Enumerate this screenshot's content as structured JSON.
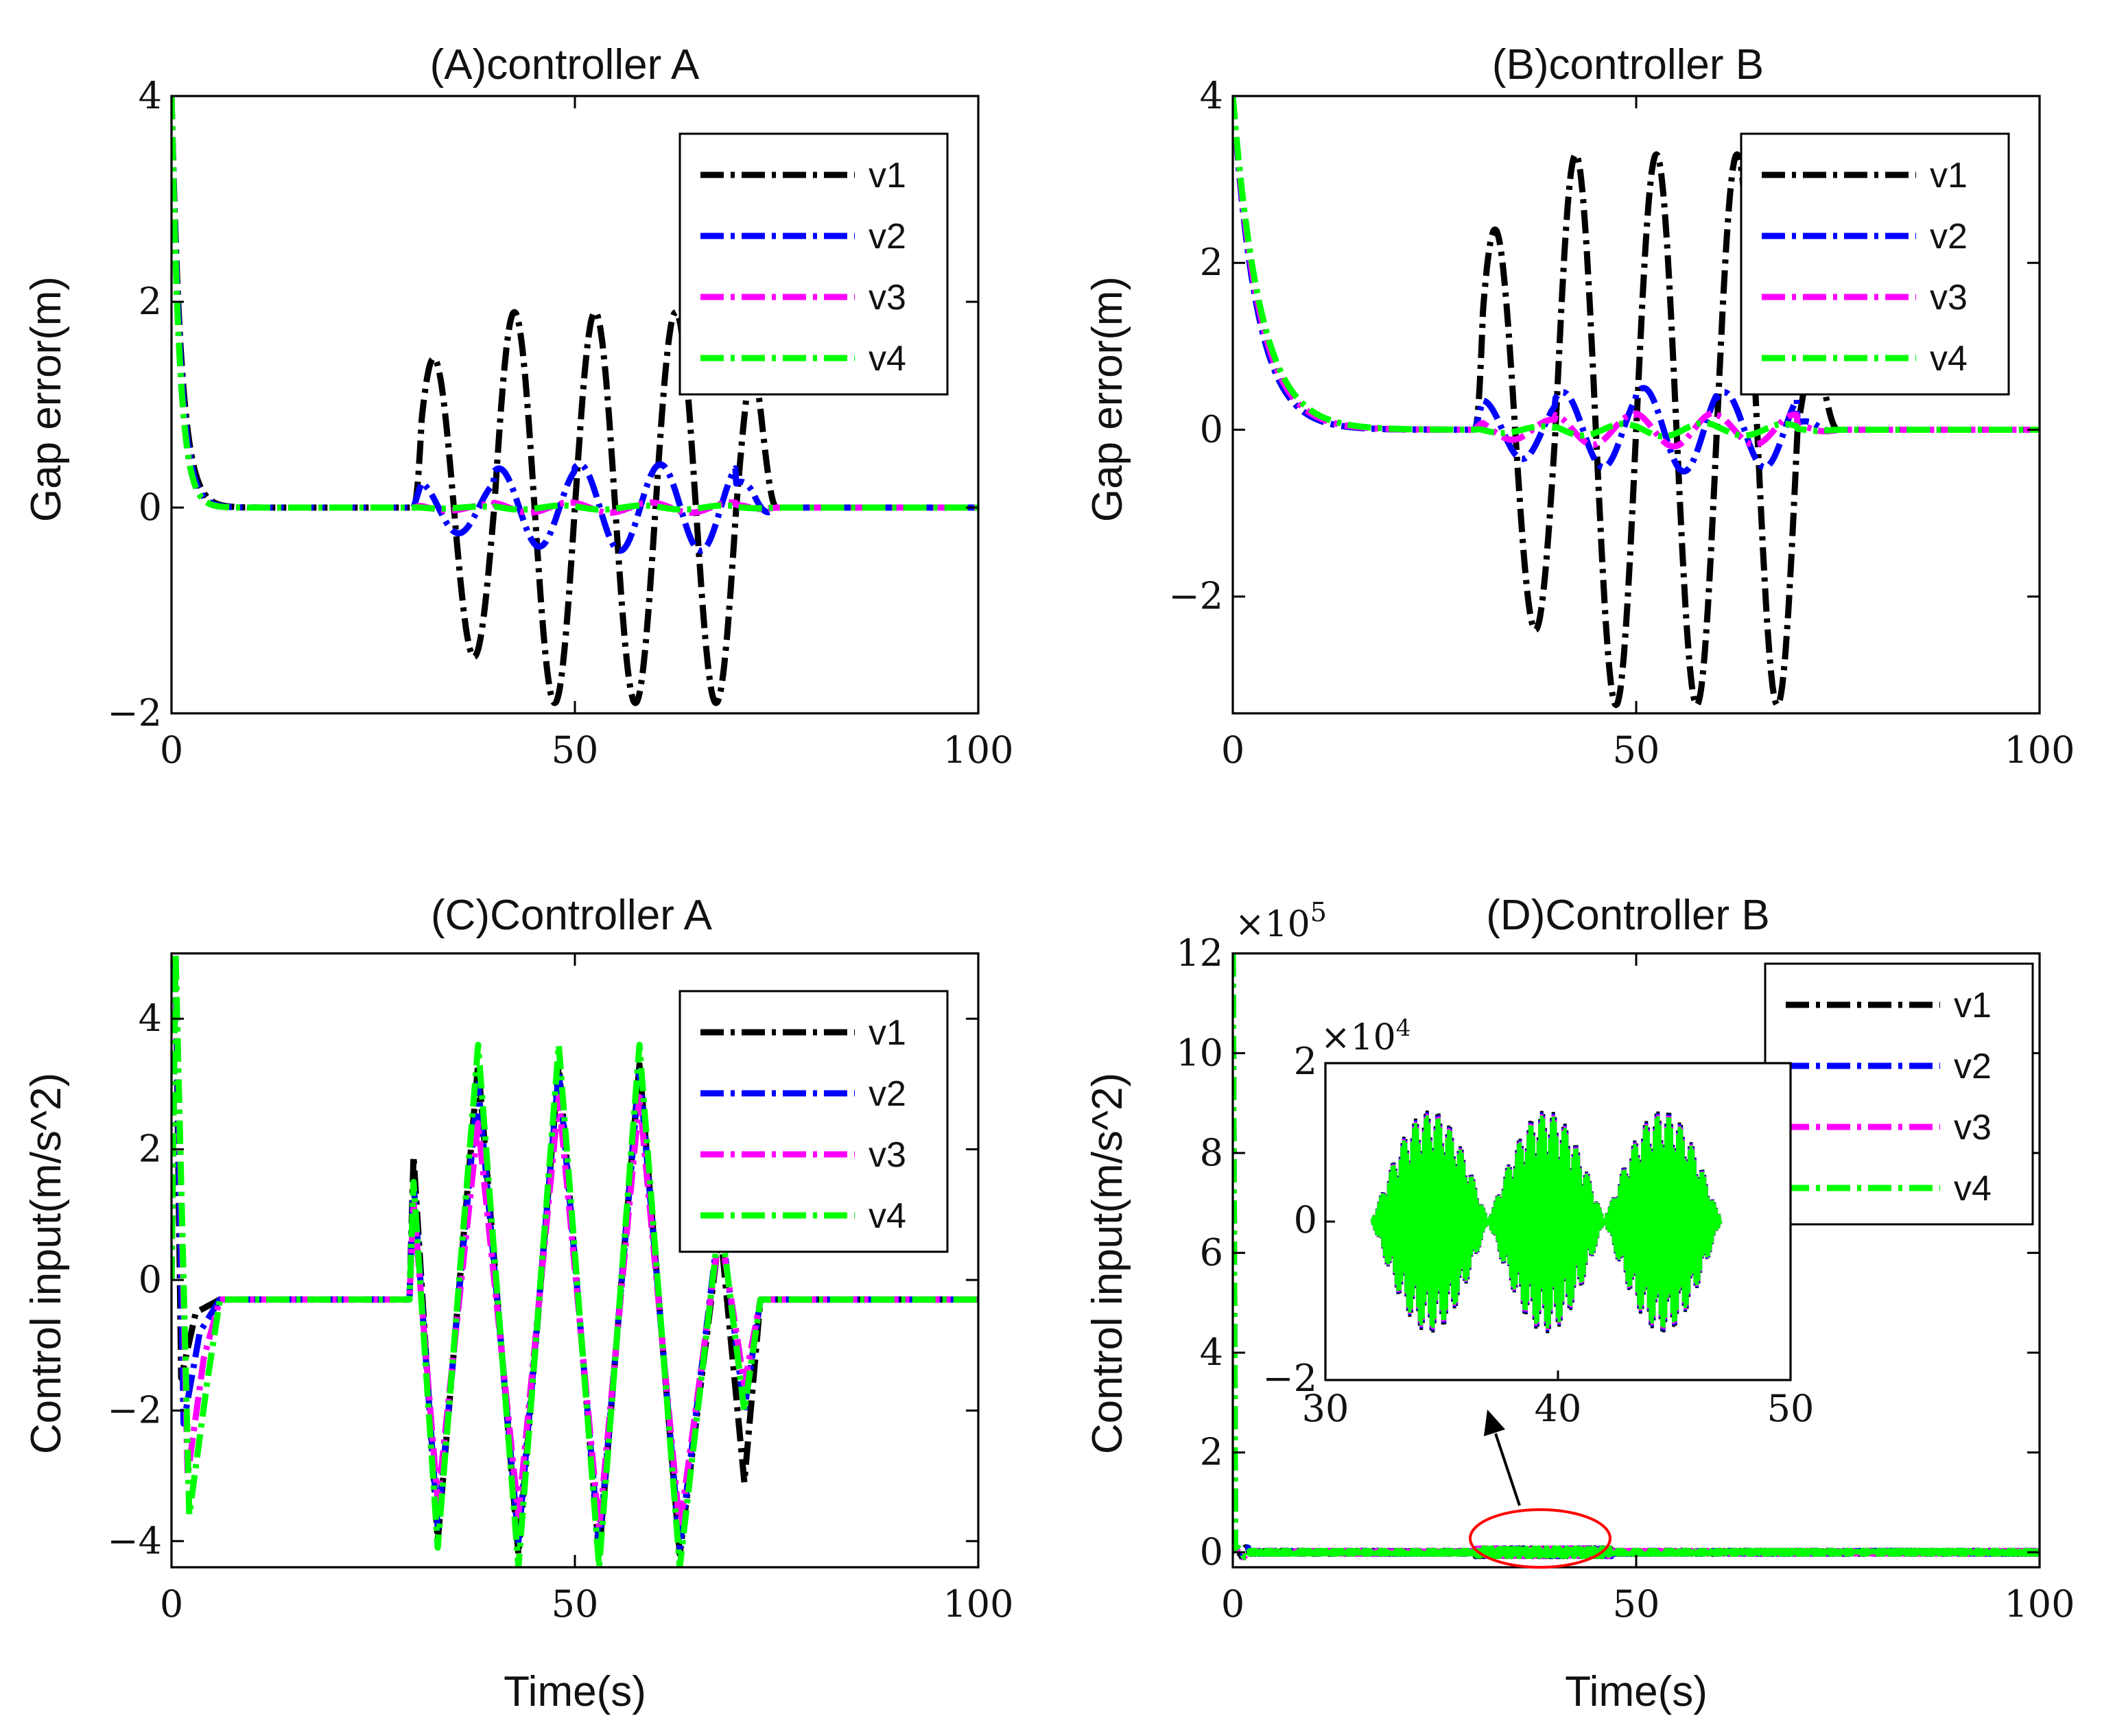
{
  "chart_data": [
    {
      "id": "A",
      "type": "line",
      "title": "(A)controller A",
      "xlabel": "",
      "ylabel": "Gap error(m)",
      "xlim": [
        0,
        100
      ],
      "ylim": [
        -2,
        4
      ],
      "xticks": [
        "0",
        "50",
        "100"
      ],
      "yticks": [
        "−2",
        "0",
        "2",
        "4"
      ],
      "legend": "top-right",
      "series": [
        {
          "name": "v1",
          "color": "#000000",
          "params": {
            "a0": 4,
            "tau0": 1.2,
            "amp": [
              1.45,
              1.9,
              1.9,
              1.9,
              1.5
            ],
            "phase": 0
          }
        },
        {
          "name": "v2",
          "color": "#0000ff",
          "params": {
            "a0": 4,
            "tau0": 1.1,
            "amp": [
              0.25,
              0.38,
              0.42,
              0.42,
              0.25
            ],
            "phase": 1.2
          }
        },
        {
          "name": "v3",
          "color": "#ff00ff",
          "params": {
            "a0": 4,
            "tau0": 1.0,
            "amp": [
              0.03,
              0.05,
              0.05,
              0.05,
              0.03
            ],
            "phase": 2.0
          }
        },
        {
          "name": "v4",
          "color": "#00ff00",
          "params": {
            "a0": 4,
            "tau0": 1.0,
            "amp": [
              0.01,
              0.02,
              0.02,
              0.02,
              0.01
            ],
            "phase": 2.6
          }
        }
      ]
    },
    {
      "id": "B",
      "type": "line",
      "title": "(B)controller B",
      "xlabel": "",
      "ylabel": "Gap error(m)",
      "xlim": [
        0,
        100
      ],
      "ylim": [
        -3.4,
        4
      ],
      "xticks": [
        "0",
        "50",
        "100"
      ],
      "yticks": [
        "−2",
        "0",
        "2",
        "4"
      ],
      "legend": "top-right",
      "series": [
        {
          "name": "v1",
          "color": "#000000",
          "params": {
            "a0": 4,
            "tau0": 3.0,
            "amp": [
              2.4,
              3.3,
              3.3,
              3.3,
              1.0
            ],
            "phase": 0
          }
        },
        {
          "name": "v2",
          "color": "#0000ff",
          "params": {
            "a0": 4,
            "tau0": 3.0,
            "amp": [
              0.35,
              0.45,
              0.5,
              0.45,
              0.1
            ],
            "phase": 1.0
          }
        },
        {
          "name": "v3",
          "color": "#ff00ff",
          "params": {
            "a0": 4,
            "tau0": 3.2,
            "amp": [
              0.12,
              0.18,
              0.2,
              0.18,
              0.05
            ],
            "phase": 1.8
          }
        },
        {
          "name": "v4",
          "color": "#00ff00",
          "params": {
            "a0": 4,
            "tau0": 3.4,
            "amp": [
              0.04,
              0.07,
              0.08,
              0.07,
              0.02
            ],
            "phase": 2.6
          }
        }
      ]
    },
    {
      "id": "C",
      "type": "line",
      "title": "(C)Controller A",
      "xlabel": "Time(s)",
      "ylabel": "Control input(m/s^2)",
      "xlim": [
        0,
        100
      ],
      "ylim": [
        -4.4,
        5
      ],
      "xticks": [
        "0",
        "50",
        "100"
      ],
      "yticks": [
        "−4",
        "−2",
        "0",
        "2",
        "4"
      ],
      "legend": "top-right",
      "series": [
        {
          "name": "v1",
          "color": "#000000",
          "params": {
            "peaks": [
              [
                0.5,
                5
              ],
              [
                1.2,
                -1.5
              ],
              [
                3,
                -0.5
              ],
              [
                30,
                1.9
              ],
              [
                33,
                -4.0
              ],
              [
                38,
                3.3
              ],
              [
                43,
                -4.2
              ],
              [
                48,
                3.3
              ],
              [
                53,
                -4.2
              ],
              [
                58,
                3.3
              ],
              [
                63,
                -4.2
              ],
              [
                68,
                0.8
              ],
              [
                71,
                -3.1
              ],
              [
                73,
                -0.3
              ]
            ]
          }
        },
        {
          "name": "v2",
          "color": "#0000ff",
          "params": {
            "peaks": [
              [
                0.5,
                5
              ],
              [
                1.5,
                -2.2
              ],
              [
                3.5,
                -0.8
              ],
              [
                30,
                1.5
              ],
              [
                33,
                -3.8
              ],
              [
                38,
                3.0
              ],
              [
                43,
                -4.0
              ],
              [
                48,
                3.2
              ],
              [
                53,
                -4.1
              ],
              [
                58,
                3.2
              ],
              [
                63,
                -4.1
              ],
              [
                68,
                1.0
              ],
              [
                71,
                -2.0
              ],
              [
                73,
                -0.3
              ]
            ]
          }
        },
        {
          "name": "v3",
          "color": "#ff00ff",
          "params": {
            "peaks": [
              [
                0.5,
                5
              ],
              [
                2,
                -3.0
              ],
              [
                4,
                -1.2
              ],
              [
                30,
                1.2
              ],
              [
                33,
                -3.4
              ],
              [
                38,
                2.4
              ],
              [
                43,
                -3.6
              ],
              [
                48,
                2.8
              ],
              [
                53,
                -3.8
              ],
              [
                58,
                2.8
              ],
              [
                63,
                -3.8
              ],
              [
                68,
                0.8
              ],
              [
                71,
                -1.6
              ],
              [
                73,
                -0.3
              ]
            ]
          }
        },
        {
          "name": "v4",
          "color": "#00ff00",
          "params": {
            "peaks": [
              [
                0.5,
                5
              ],
              [
                2.2,
                -3.6
              ],
              [
                4.5,
                -1.5
              ],
              [
                30,
                1.5
              ],
              [
                33,
                -4.1
              ],
              [
                38,
                3.6
              ],
              [
                43,
                -4.4
              ],
              [
                48,
                3.6
              ],
              [
                53,
                -4.4
              ],
              [
                58,
                3.6
              ],
              [
                63,
                -4.4
              ],
              [
                68,
                1.0
              ],
              [
                71,
                -2.0
              ],
              [
                73,
                -0.3
              ]
            ]
          }
        }
      ]
    },
    {
      "id": "D",
      "type": "line",
      "title": "(D)Controller B",
      "xlabel": "Time(s)",
      "ylabel": "Control input(m/s^2)",
      "xlim": [
        0,
        100
      ],
      "ylim": [
        -0.3,
        12
      ],
      "y_exponent": "×10",
      "y_exponent_power": "5",
      "xticks": [
        "0",
        "50",
        "100"
      ],
      "yticks": [
        "0",
        "2",
        "4",
        "6",
        "8",
        "10",
        "12"
      ],
      "legend": "top-right",
      "series": [
        {
          "name": "v1",
          "color": "#000000"
        },
        {
          "name": "v2",
          "color": "#0000ff"
        },
        {
          "name": "v3",
          "color": "#ff00ff"
        },
        {
          "name": "v4",
          "color": "#00ff00"
        }
      ],
      "inset": {
        "xlim": [
          30,
          50
        ],
        "ylim": [
          -2,
          2
        ],
        "xticks": [
          "30",
          "40",
          "50"
        ],
        "yticks": [
          "−2",
          "0",
          "2"
        ],
        "y_exponent": "×10",
        "y_exponent_power": "4",
        "signal_range": [
          32,
          47
        ],
        "envelope_peaks": [
          [
            35,
            1.3
          ],
          [
            40,
            1.4
          ],
          [
            45,
            1.3
          ]
        ]
      },
      "annotation": "zoom ellipse around t=30–45 with arrow to inset"
    }
  ]
}
